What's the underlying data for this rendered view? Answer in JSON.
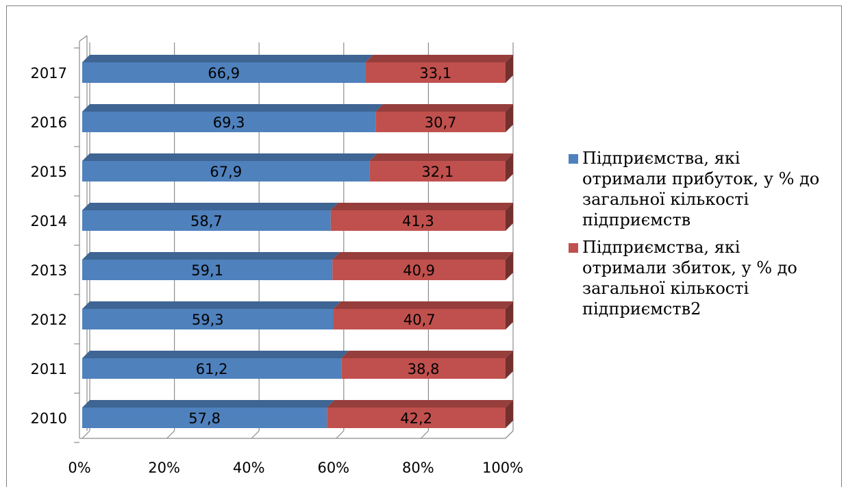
{
  "chart_data": {
    "type": "bar",
    "orientation": "horizontal",
    "stacked": "100%",
    "categories": [
      "2010",
      "2011",
      "2012",
      "2013",
      "2014",
      "2015",
      "2016",
      "2017"
    ],
    "series": [
      {
        "name": "Підприємства, які отримали прибуток, у % до загальної кількості підприємств",
        "values": [
          57.8,
          61.2,
          59.3,
          59.1,
          58.7,
          67.9,
          69.3,
          66.9
        ],
        "labels": [
          "57,8",
          "61,2",
          "59,3",
          "59,1",
          "58,7",
          "67,9",
          "69,3",
          "66,9"
        ],
        "color": "#4F81BD"
      },
      {
        "name": "Підприємства, які отримали збиток, у % до загальної кількості підприємств2",
        "values": [
          42.2,
          38.8,
          40.7,
          40.9,
          41.3,
          32.1,
          30.7,
          33.1
        ],
        "labels": [
          "42,2",
          "38,8",
          "40,7",
          "40,9",
          "41,3",
          "32,1",
          "30,7",
          "33,1"
        ],
        "color": "#C0504D"
      }
    ],
    "x_ticks": [
      "0%",
      "20%",
      "40%",
      "60%",
      "80%",
      "100%"
    ],
    "xlim": [
      0,
      100
    ],
    "grid": true,
    "legend_position": "right"
  }
}
